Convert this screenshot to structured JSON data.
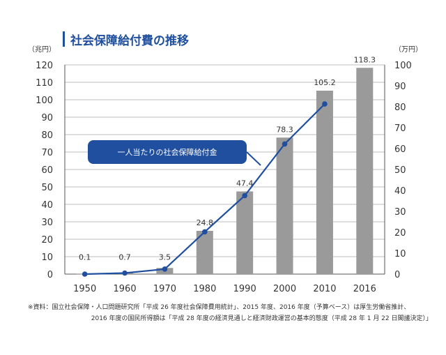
{
  "title": "社会保障給付費の推移",
  "units": {
    "left": "（兆円）",
    "right": "（万円）"
  },
  "callout": "一人当たりの社会保障給付金",
  "source": [
    "※資料：国立社会保障・人口問題研究所「平成 26 年度社会保障費用統計」、2015 年度、2016 年度（予算ベース）は厚生労働省推計、",
    "2016 年度の国民所得額は「平成 28 年度の経済見通しと経済財政運営の基本的態度（平成 28 年 1 月 22 日閣議決定）」"
  ],
  "colors": {
    "bar": "#9a9a9a",
    "line": "#1f4f9e",
    "title": "#1f4f9e",
    "grid": "#bdbdbd"
  },
  "chart_data": {
    "type": "bar",
    "categories": [
      "1950",
      "1960",
      "1970",
      "1980",
      "1990",
      "2000",
      "2010",
      "2016"
    ],
    "series": [
      {
        "type": "bar",
        "axis": "left",
        "values": [
          0.1,
          0.7,
          3.5,
          24.8,
          47.4,
          78.3,
          105.2,
          118.3
        ]
      },
      {
        "type": "line",
        "axis": "right",
        "name": "一人当たりの社会保障給付金",
        "values": [
          0,
          0.5,
          2.4,
          20.2,
          37.5,
          62.2,
          81.3,
          null
        ]
      }
    ],
    "data_labels": [
      "0.1",
      "0.7",
      "3.5",
      "24.8",
      "47.4",
      "78.3",
      "105.2",
      "118.3"
    ],
    "y_left": {
      "min": 0,
      "max": 120,
      "ticks": [
        0,
        10,
        20,
        30,
        40,
        50,
        60,
        70,
        80,
        90,
        100,
        110,
        120
      ]
    },
    "y_right": {
      "min": 0,
      "max": 100,
      "ticks": [
        0,
        10,
        20,
        30,
        40,
        50,
        60,
        70,
        80,
        90,
        100
      ]
    },
    "grid": true
  }
}
